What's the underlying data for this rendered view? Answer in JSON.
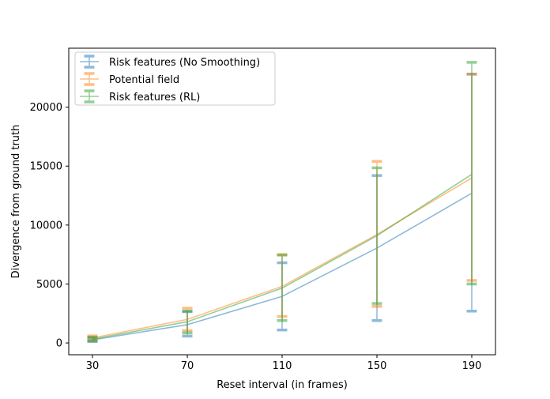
{
  "chart_data": {
    "type": "line",
    "title": "",
    "xlabel": "Reset interval (in frames)",
    "ylabel": "Divergence from ground truth",
    "x": [
      30,
      70,
      110,
      150,
      190
    ],
    "x_ticks": [
      "30",
      "70",
      "110",
      "150",
      "190"
    ],
    "xlim": [
      20,
      200
    ],
    "ylim": [
      -1000,
      25000
    ],
    "y_ticks": [
      0,
      5000,
      10000,
      15000,
      20000
    ],
    "y_tick_labels": [
      "0",
      "5000",
      "10000",
      "15000",
      "20000"
    ],
    "grid": false,
    "legend_position": "upper-left",
    "series": [
      {
        "name": "Risk features (No Smoothing)",
        "color": "#1f77b4",
        "values": [
          260,
          1550,
          3950,
          8050,
          12700
        ],
        "err_low": [
          120,
          580,
          1100,
          1900,
          2700
        ],
        "err_high": [
          420,
          2650,
          6800,
          14200,
          22800
        ]
      },
      {
        "name": "Potential field",
        "color": "#ff7f0e",
        "values": [
          420,
          2000,
          4800,
          9200,
          14000
        ],
        "err_low": [
          250,
          1050,
          2250,
          3100,
          5300
        ],
        "err_high": [
          600,
          2950,
          7500,
          15400,
          22800
        ]
      },
      {
        "name": "Risk features (RL)",
        "color": "#2ca02c",
        "values": [
          320,
          1800,
          4650,
          9100,
          14300
        ],
        "err_low": [
          180,
          850,
          1900,
          3350,
          5000
        ],
        "err_high": [
          500,
          2700,
          7450,
          14850,
          23800
        ]
      }
    ]
  }
}
